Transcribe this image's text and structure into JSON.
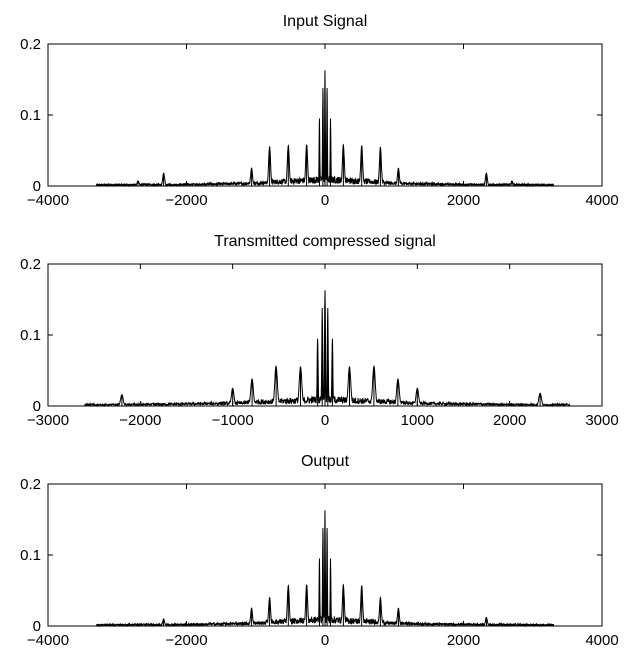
{
  "chart_data": [
    {
      "type": "line",
      "title": "Input Signal",
      "xlim": [
        -4000,
        4000
      ],
      "ylim": [
        0,
        0.2
      ],
      "xticks": [
        -4000,
        -2000,
        0,
        2000,
        4000
      ],
      "xtick_labels": [
        "−4000",
        "−2000",
        "0",
        "2000",
        "4000"
      ],
      "yticks": [
        0,
        0.1,
        0.2
      ],
      "ytick_labels": [
        "0",
        "0.1",
        "0.2"
      ],
      "signal_extent": [
        -3300,
        3300
      ],
      "peaks": [
        {
          "x": 0,
          "y": 0.163
        },
        {
          "x": -30,
          "y": 0.138
        },
        {
          "x": 30,
          "y": 0.138
        },
        {
          "x": -80,
          "y": 0.095
        },
        {
          "x": 80,
          "y": 0.095
        },
        {
          "x": -265,
          "y": 0.058
        },
        {
          "x": 265,
          "y": 0.058
        },
        {
          "x": -530,
          "y": 0.057
        },
        {
          "x": 530,
          "y": 0.057
        },
        {
          "x": -800,
          "y": 0.055
        },
        {
          "x": 800,
          "y": 0.055
        },
        {
          "x": -1060,
          "y": 0.025
        },
        {
          "x": 1060,
          "y": 0.025
        },
        {
          "x": -2330,
          "y": 0.018
        },
        {
          "x": 2330,
          "y": 0.018
        },
        {
          "x": -2700,
          "y": 0.007
        },
        {
          "x": 2700,
          "y": 0.007
        }
      ]
    },
    {
      "type": "line",
      "title": "Transmitted compressed signal",
      "xlim": [
        -3000,
        3000
      ],
      "ylim": [
        0,
        0.2
      ],
      "xticks": [
        -3000,
        -2000,
        -1000,
        0,
        1000,
        2000,
        3000
      ],
      "xtick_labels": [
        "−3000",
        "−2000",
        "−1000",
        "0",
        "1000",
        "2000",
        "3000"
      ],
      "yticks": [
        0,
        0.1,
        0.2
      ],
      "ytick_labels": [
        "0",
        "0.1",
        "0.2"
      ],
      "signal_extent": [
        -2600,
        2650
      ],
      "peaks": [
        {
          "x": 0,
          "y": 0.163
        },
        {
          "x": -30,
          "y": 0.138
        },
        {
          "x": 30,
          "y": 0.138
        },
        {
          "x": -80,
          "y": 0.095
        },
        {
          "x": 80,
          "y": 0.095
        },
        {
          "x": -265,
          "y": 0.055
        },
        {
          "x": 265,
          "y": 0.055
        },
        {
          "x": -530,
          "y": 0.056
        },
        {
          "x": 530,
          "y": 0.056
        },
        {
          "x": -790,
          "y": 0.038
        },
        {
          "x": 790,
          "y": 0.038
        },
        {
          "x": -1000,
          "y": 0.025
        },
        {
          "x": 1000,
          "y": 0.025
        },
        {
          "x": -2200,
          "y": 0.016
        },
        {
          "x": 2330,
          "y": 0.018
        }
      ]
    },
    {
      "type": "line",
      "title": "Output",
      "xlim": [
        -4000,
        4000
      ],
      "ylim": [
        0,
        0.2
      ],
      "xticks": [
        -4000,
        -2000,
        0,
        2000,
        4000
      ],
      "xtick_labels": [
        "−4000",
        "−2000",
        "0",
        "2000",
        "4000"
      ],
      "yticks": [
        0,
        0.1,
        0.2
      ],
      "ytick_labels": [
        "0",
        "0.1",
        "0.2"
      ],
      "signal_extent": [
        -3300,
        3300
      ],
      "peaks": [
        {
          "x": 0,
          "y": 0.163
        },
        {
          "x": -30,
          "y": 0.138
        },
        {
          "x": 30,
          "y": 0.138
        },
        {
          "x": -80,
          "y": 0.095
        },
        {
          "x": 80,
          "y": 0.095
        },
        {
          "x": -265,
          "y": 0.058
        },
        {
          "x": 265,
          "y": 0.058
        },
        {
          "x": -530,
          "y": 0.057
        },
        {
          "x": 530,
          "y": 0.057
        },
        {
          "x": -800,
          "y": 0.04
        },
        {
          "x": 800,
          "y": 0.04
        },
        {
          "x": -1060,
          "y": 0.025
        },
        {
          "x": 1060,
          "y": 0.025
        },
        {
          "x": -2330,
          "y": 0.01
        },
        {
          "x": 2330,
          "y": 0.012
        }
      ]
    }
  ]
}
